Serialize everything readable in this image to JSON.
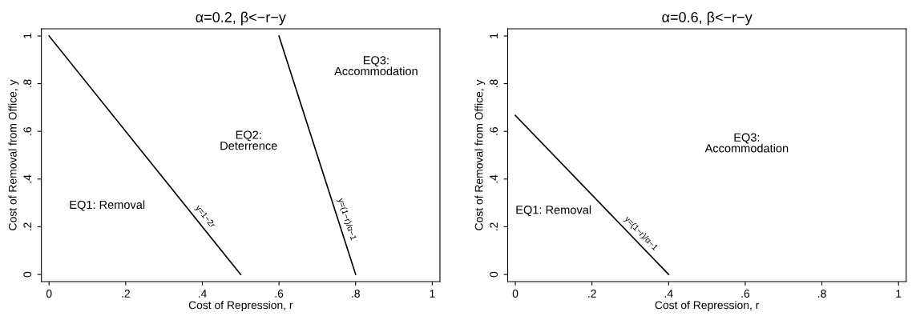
{
  "chart_data": [
    {
      "type": "line",
      "title": "α=0.2, β<−r−y",
      "xlabel": "Cost of Repression, r",
      "ylabel": "Cost of Removal from Office, y",
      "series": [
        {
          "name": "y=1−2r",
          "color": "#000000",
          "x": [
            0,
            0.5
          ],
          "values": [
            1,
            0
          ]
        },
        {
          "name": "y=(1−r)/α−1",
          "color": "#000000",
          "x": [
            0.6,
            0.8
          ],
          "values": [
            1,
            0
          ]
        }
      ],
      "xlim": [
        -0.02,
        1.02
      ],
      "ylim": [
        -0.03,
        1.03
      ],
      "xticks": [
        0,
        {
          "value": 0.2,
          "label": ".2"
        },
        {
          "value": 0.4,
          "label": ".4"
        },
        {
          "value": 0.6,
          "label": ".6"
        },
        {
          "value": 0.8,
          "label": ".8"
        },
        1
      ],
      "yticks": [
        0,
        {
          "value": 0.2,
          "label": ".2"
        },
        {
          "value": 0.4,
          "label": ".4"
        },
        {
          "value": 0.6,
          "label": ".6"
        },
        {
          "value": 0.8,
          "label": ".8"
        },
        1
      ],
      "grid": false,
      "marker": "none",
      "line_style": "solid",
      "annotations": [
        "EQ1: Removal",
        "EQ2:\nDeterrence",
        "EQ3:\nAccommodation"
      ]
    },
    {
      "type": "line",
      "title": "α=0.6, β<−r−y",
      "xlabel": "Cost of Repression, r",
      "ylabel": "Cost of Removal from Office, y",
      "series": [
        {
          "name": "y=(1−r)/α−1",
          "color": "#000000",
          "x": [
            0,
            0.4
          ],
          "values": [
            0.667,
            0
          ]
        }
      ],
      "xlim": [
        -0.02,
        1.02
      ],
      "ylim": [
        -0.03,
        1.03
      ],
      "xticks": [
        0,
        {
          "value": 0.2,
          "label": ".2"
        },
        {
          "value": 0.4,
          "label": ".4"
        },
        {
          "value": 0.6,
          "label": ".6"
        },
        {
          "value": 0.8,
          "label": ".8"
        },
        1
      ],
      "yticks": [
        0,
        {
          "value": 0.2,
          "label": ".2"
        },
        {
          "value": 0.4,
          "label": ".4"
        },
        {
          "value": 0.6,
          "label": ".6"
        },
        {
          "value": 0.8,
          "label": ".8"
        },
        1
      ],
      "grid": false,
      "marker": "none",
      "line_style": "solid",
      "annotations": [
        "EQ1: Removal",
        "EQ3:\nAccommodation"
      ]
    }
  ]
}
